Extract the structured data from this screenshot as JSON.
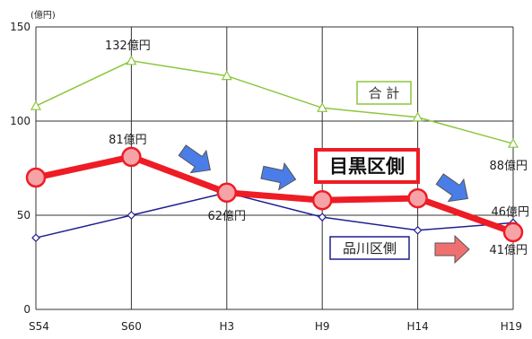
{
  "chart_data": {
    "type": "line",
    "unit_label": "(億円)",
    "categories": [
      "S54",
      "S60",
      "H3",
      "H9",
      "H14",
      "H19"
    ],
    "ylim": [
      0,
      150
    ],
    "yticks": [
      0,
      50,
      100,
      150
    ],
    "grid": true,
    "series": [
      {
        "name": "合 計",
        "color": "#8dc63f",
        "values": [
          108,
          132,
          124,
          107,
          102,
          88
        ]
      },
      {
        "name": "目黒区側",
        "color": "#ee1c25",
        "values": [
          70,
          81,
          62,
          58,
          59,
          41
        ]
      },
      {
        "name": "品川区側",
        "color": "#1f1f8f",
        "values": [
          38,
          50,
          62,
          49,
          42,
          46
        ]
      }
    ],
    "data_labels": [
      {
        "series": 0,
        "index": 1,
        "text": "132億円"
      },
      {
        "series": 1,
        "index": 1,
        "text": "81億円"
      },
      {
        "series": 1,
        "index": 2,
        "text": "62億円"
      },
      {
        "series": 0,
        "index": 5,
        "text": "88億円"
      },
      {
        "series": 2,
        "index": 5,
        "text": "46億円"
      },
      {
        "series": 1,
        "index": 5,
        "text": "41億円"
      }
    ]
  }
}
